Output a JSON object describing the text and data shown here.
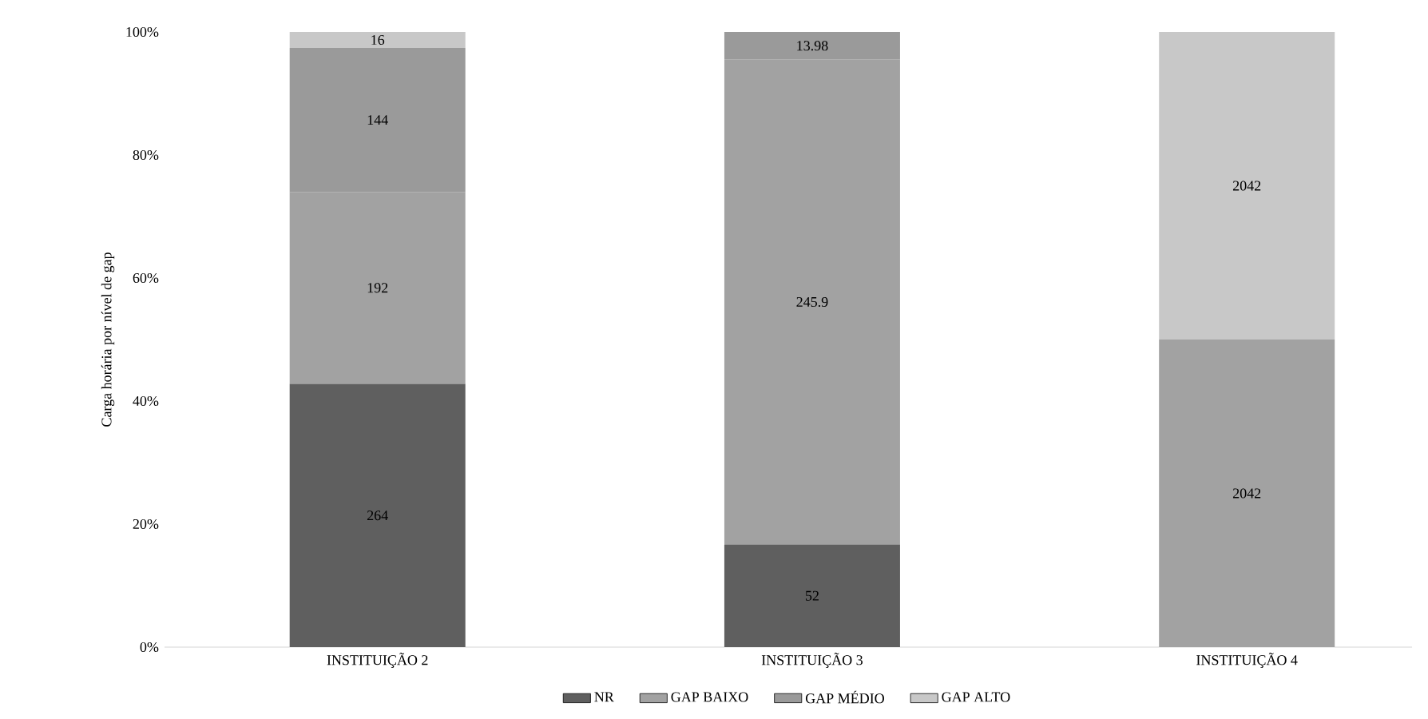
{
  "chart_data": {
    "type": "bar",
    "stacked": true,
    "ylabel": "Carga horária por nível de gap",
    "categories": [
      "INSTITUIÇÃO  2",
      "INSTITUIÇÃO 3",
      "INSTITUIÇÃO 4"
    ],
    "series": [
      {
        "name": "NR",
        "color": "#5f5f5f",
        "values": [
          42.8,
          16.7,
          null
        ]
      },
      {
        "name": "GAP BAIXO",
        "color": "#a2a2a2",
        "values": [
          31.2,
          78.8,
          50
        ]
      },
      {
        "name": "GAP MÉDIO",
        "color": "#9a9a9a",
        "values": [
          23.4,
          4.5,
          null
        ]
      },
      {
        "name": "GAP ALTO",
        "color": "#c8c8c8",
        "values": [
          2.6,
          null,
          50
        ]
      }
    ],
    "annotations": [
      "264",
      "52",
      "192",
      "245.9",
      "2042",
      "144",
      "13.98",
      "16",
      "2042"
    ],
    "ylim": [
      0,
      100
    ],
    "yticks": [
      {
        "value": 0,
        "label": "0%"
      },
      {
        "value": 20,
        "label": "20%"
      },
      {
        "value": 40,
        "label": "40%"
      },
      {
        "value": 60,
        "label": "60%"
      },
      {
        "value": 80,
        "label": "80%"
      },
      {
        "value": 100,
        "label": "100%"
      }
    ],
    "legend": "bottom",
    "grid": false
  }
}
